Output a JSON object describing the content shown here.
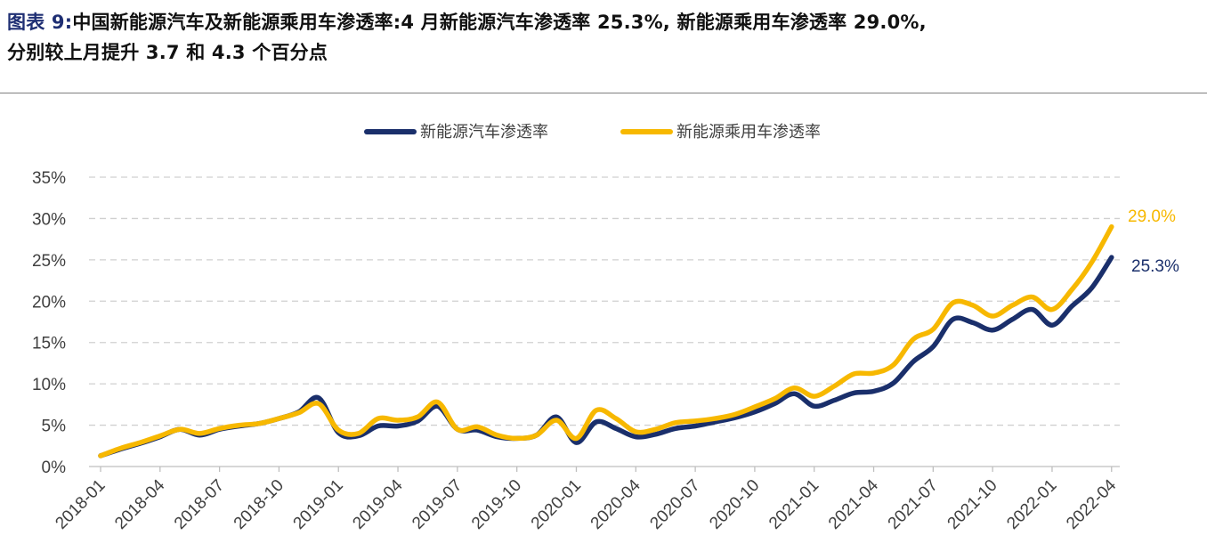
{
  "caption": {
    "prefix": "图表 9:",
    "line1": "中国新能源汽车及新能源乘用车渗透率:4 月新能源汽车渗透率 25.3%, 新能源乘用车渗透率 29.0%,",
    "line2": "分别较上月提升 3.7 和 4.3 个百分点"
  },
  "colors": {
    "series1": "#1a2f6b",
    "series2": "#f7b800",
    "grid": "#d0d0d0",
    "axis": "#bfbfbf"
  },
  "chart_data": {
    "type": "line",
    "title": "",
    "xlabel": "",
    "ylabel": "",
    "ylim": [
      0,
      35
    ],
    "y_ticks": [
      "0%",
      "5%",
      "10%",
      "15%",
      "20%",
      "25%",
      "30%",
      "35%"
    ],
    "x_tick_labels": [
      "2018-01",
      "2018-04",
      "2018-07",
      "2018-10",
      "2019-01",
      "2019-04",
      "2019-07",
      "2019-10",
      "2020-01",
      "2020-04",
      "2020-07",
      "2020-10",
      "2021-01",
      "2021-04",
      "2021-07",
      "2021-10",
      "2022-01",
      "2022-04"
    ],
    "grid": "horizontal dashed",
    "legend_position": "top-center",
    "x": [
      "2018-01",
      "2018-02",
      "2018-03",
      "2018-04",
      "2018-05",
      "2018-06",
      "2018-07",
      "2018-08",
      "2018-09",
      "2018-10",
      "2018-11",
      "2018-12",
      "2019-01",
      "2019-02",
      "2019-03",
      "2019-04",
      "2019-05",
      "2019-06",
      "2019-07",
      "2019-08",
      "2019-09",
      "2019-10",
      "2019-11",
      "2019-12",
      "2020-01",
      "2020-02",
      "2020-03",
      "2020-04",
      "2020-05",
      "2020-06",
      "2020-07",
      "2020-08",
      "2020-09",
      "2020-10",
      "2020-11",
      "2020-12",
      "2021-01",
      "2021-02",
      "2021-03",
      "2021-04",
      "2021-05",
      "2021-06",
      "2021-07",
      "2021-08",
      "2021-09",
      "2021-10",
      "2021-11",
      "2021-12",
      "2022-01",
      "2022-02",
      "2022-03",
      "2022-04"
    ],
    "series": [
      {
        "name": "新能源汽车渗透率",
        "values": [
          1.3,
          2.1,
          2.8,
          3.6,
          4.5,
          3.8,
          4.5,
          4.9,
          5.2,
          5.8,
          6.6,
          8.3,
          4.1,
          3.7,
          4.9,
          4.9,
          5.5,
          7.3,
          4.5,
          4.4,
          3.6,
          3.4,
          3.8,
          6.0,
          2.9,
          5.4,
          4.6,
          3.6,
          3.9,
          4.6,
          4.9,
          5.4,
          5.9,
          6.6,
          7.6,
          8.8,
          7.3,
          8.0,
          8.9,
          9.1,
          10.1,
          12.7,
          14.5,
          17.8,
          17.4,
          16.5,
          17.8,
          19.0,
          17.1,
          19.4,
          21.6,
          25.3
        ]
      },
      {
        "name": "新能源乘用车渗透率",
        "values": [
          1.3,
          2.2,
          2.9,
          3.7,
          4.5,
          4.0,
          4.6,
          5.0,
          5.2,
          5.8,
          6.5,
          7.6,
          4.4,
          4.0,
          5.8,
          5.6,
          6.0,
          7.8,
          4.5,
          4.8,
          3.8,
          3.4,
          3.8,
          5.6,
          3.4,
          6.8,
          5.8,
          4.2,
          4.5,
          5.3,
          5.5,
          5.8,
          6.3,
          7.2,
          8.2,
          9.5,
          8.5,
          9.7,
          11.2,
          11.3,
          12.3,
          15.4,
          16.6,
          19.8,
          19.5,
          18.2,
          19.5,
          20.5,
          19.0,
          21.4,
          24.7,
          29.0
        ]
      }
    ],
    "end_labels": [
      "25.3%",
      "29.0%"
    ]
  }
}
